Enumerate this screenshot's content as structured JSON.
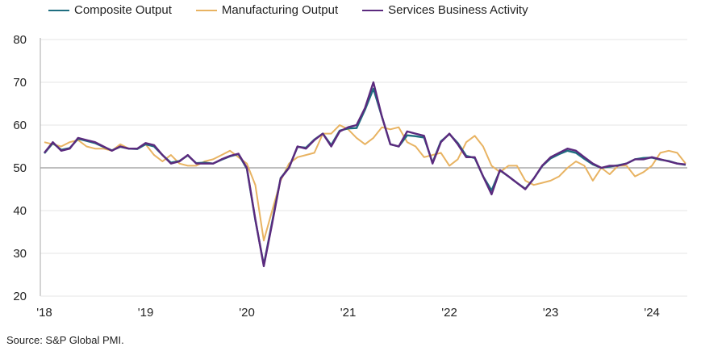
{
  "chart_data": {
    "type": "line",
    "title": "",
    "xlabel": "",
    "ylabel": "",
    "ylim": [
      20,
      80
    ],
    "yticks": [
      "20",
      "30",
      "40",
      "50",
      "60",
      "70",
      "80"
    ],
    "xtick_labels": [
      "'18",
      "'19",
      "'20",
      "'21",
      "'22",
      "'23",
      "'24"
    ],
    "x_start": "2018-01",
    "x_frequency": "monthly",
    "reference_line": 50,
    "grid": true,
    "legend_position": "top",
    "series": [
      {
        "name": "Composite Output",
        "color": "#1f6e80",
        "values": [
          53.4,
          55.8,
          54.2,
          54.6,
          56.8,
          56.3,
          55.8,
          54.9,
          54.1,
          54.9,
          54.5,
          54.4,
          55.5,
          55.0,
          53.0,
          51.2,
          51.6,
          52.9,
          51.1,
          51.2,
          51.0,
          51.9,
          52.7,
          53.2,
          49.8,
          37.8,
          27.3,
          37.4,
          47.6,
          50.1,
          54.9,
          54.7,
          56.6,
          58.0,
          55.3,
          58.7,
          59.2,
          59.3,
          63.6,
          68.5,
          62.0,
          55.5,
          55.0,
          57.6,
          57.4,
          57.1,
          51.2,
          56.2,
          57.9,
          55.8,
          52.8,
          52.3,
          48.0,
          44.7,
          49.4,
          48.0,
          46.5,
          45.1,
          47.5,
          50.4,
          52.2,
          53.2,
          54.0,
          53.5,
          52.1,
          50.8,
          50.0,
          50.3,
          50.6,
          51.0,
          52.0,
          52.3,
          52.4,
          51.9,
          51.6,
          51.0,
          50.7
        ]
      },
      {
        "name": "Manufacturing Output",
        "color": "#e8b362",
        "values": [
          56.0,
          55.5,
          55.0,
          56.0,
          56.5,
          55.0,
          54.5,
          54.5,
          54.0,
          55.5,
          54.5,
          54.5,
          55.5,
          53.0,
          51.5,
          53.0,
          51.0,
          50.5,
          50.5,
          51.5,
          52.0,
          53.0,
          54.0,
          52.5,
          51.0,
          46.0,
          33.0,
          40.0,
          47.0,
          51.0,
          52.5,
          53.0,
          53.5,
          58.0,
          58.0,
          60.0,
          59.0,
          57.0,
          55.5,
          57.0,
          59.5,
          59.0,
          59.5,
          56.0,
          55.0,
          52.5,
          53.0,
          53.5,
          50.5,
          52.0,
          56.0,
          57.5,
          55.0,
          50.5,
          49.0,
          50.5,
          50.5,
          47.0,
          46.0,
          46.5,
          47.0,
          48.0,
          50.0,
          51.5,
          50.5,
          47.0,
          50.0,
          48.5,
          50.5,
          50.5,
          48.0,
          49.0,
          50.5,
          53.5,
          54.0,
          53.5,
          51.0
        ]
      },
      {
        "name": "Services Business Activity",
        "color": "#5b2a7e",
        "values": [
          53.5,
          56.0,
          54.0,
          54.5,
          57.0,
          56.5,
          56.0,
          55.0,
          54.0,
          55.0,
          54.5,
          54.5,
          55.8,
          55.3,
          53.0,
          51.0,
          51.5,
          53.0,
          51.0,
          51.0,
          51.0,
          52.0,
          52.8,
          53.3,
          50.0,
          38.0,
          27.0,
          37.0,
          47.5,
          50.0,
          55.0,
          54.5,
          56.5,
          58.0,
          55.0,
          58.5,
          59.5,
          60.0,
          64.0,
          70.0,
          62.0,
          55.5,
          55.0,
          58.5,
          58.0,
          57.5,
          51.0,
          56.0,
          58.0,
          55.5,
          52.5,
          52.5,
          48.0,
          43.8,
          49.5,
          48.0,
          46.5,
          45.0,
          47.5,
          50.5,
          52.5,
          53.5,
          54.5,
          54.0,
          52.5,
          51.0,
          50.0,
          50.5,
          50.5,
          51.0,
          52.0,
          52.0,
          52.5,
          52.0,
          51.5,
          51.0,
          50.8
        ]
      }
    ]
  },
  "source": "Source: S&P Global PMI."
}
